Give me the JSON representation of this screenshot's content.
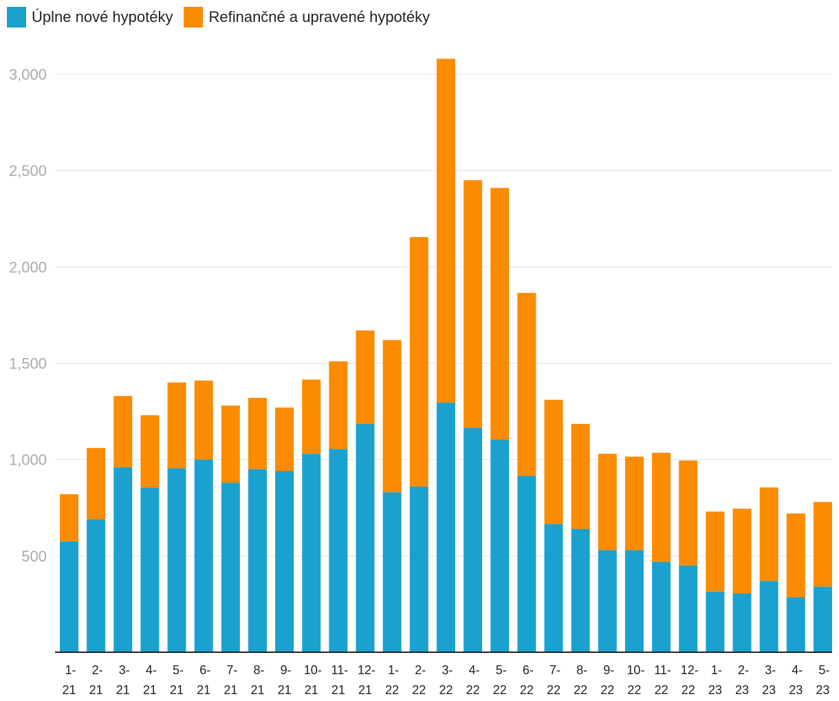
{
  "colors": {
    "new": "#1ba1cf",
    "refi": "#fb8b00",
    "grid": "#e0e0e0",
    "axis": "#222222",
    "ytick": "#aaaaaa",
    "xtick": "#222222"
  },
  "chart_data": {
    "type": "bar",
    "stacked": true,
    "legend_position": "top-left",
    "grid": true,
    "ylim": [
      0,
      3000
    ],
    "y_ticks": [
      500,
      1000,
      1500,
      2000,
      2500,
      3000
    ],
    "y_tick_labels": [
      "500",
      "1,000",
      "1,500",
      "2,000",
      "2,500",
      "3,000"
    ],
    "categories": [
      "1-21",
      "2-21",
      "3-21",
      "4-21",
      "5-21",
      "6-21",
      "7-21",
      "8-21",
      "9-21",
      "10-21",
      "11-21",
      "12-21",
      "1-22",
      "2-22",
      "3-22",
      "4-22",
      "5-22",
      "6-22",
      "7-22",
      "8-22",
      "9-22",
      "10-22",
      "11-22",
      "12-22",
      "1-23",
      "2-23",
      "3-23",
      "4-23",
      "5-23"
    ],
    "category_lines": [
      [
        "1-",
        "21"
      ],
      [
        "2-",
        "21"
      ],
      [
        "3-",
        "21"
      ],
      [
        "4-",
        "21"
      ],
      [
        "5-",
        "21"
      ],
      [
        "6-",
        "21"
      ],
      [
        "7-",
        "21"
      ],
      [
        "8-",
        "21"
      ],
      [
        "9-",
        "21"
      ],
      [
        "10-",
        "21"
      ],
      [
        "11-",
        "21"
      ],
      [
        "12-",
        "21"
      ],
      [
        "1-",
        "22"
      ],
      [
        "2-",
        "22"
      ],
      [
        "3-",
        "22"
      ],
      [
        "4-",
        "22"
      ],
      [
        "5-",
        "22"
      ],
      [
        "6-",
        "22"
      ],
      [
        "7-",
        "22"
      ],
      [
        "8-",
        "22"
      ],
      [
        "9-",
        "22"
      ],
      [
        "10-",
        "22"
      ],
      [
        "11-",
        "22"
      ],
      [
        "12-",
        "22"
      ],
      [
        "1-",
        "23"
      ],
      [
        "2-",
        "23"
      ],
      [
        "3-",
        "23"
      ],
      [
        "4-",
        "23"
      ],
      [
        "5-",
        "23"
      ]
    ],
    "series": [
      {
        "name": "Úplne nové hypotéky",
        "values": [
          575,
          690,
          960,
          855,
          955,
          1000,
          880,
          950,
          940,
          1030,
          1055,
          1185,
          830,
          860,
          1295,
          1165,
          1105,
          915,
          665,
          640,
          530,
          530,
          470,
          450,
          315,
          305,
          370,
          285,
          340
        ]
      },
      {
        "name": "Refinančné a upravené hypotéky",
        "values": [
          245,
          370,
          370,
          375,
          445,
          410,
          400,
          370,
          330,
          385,
          455,
          485,
          790,
          1295,
          1785,
          1285,
          1305,
          950,
          645,
          545,
          500,
          485,
          565,
          545,
          415,
          440,
          485,
          435,
          440
        ]
      }
    ]
  }
}
